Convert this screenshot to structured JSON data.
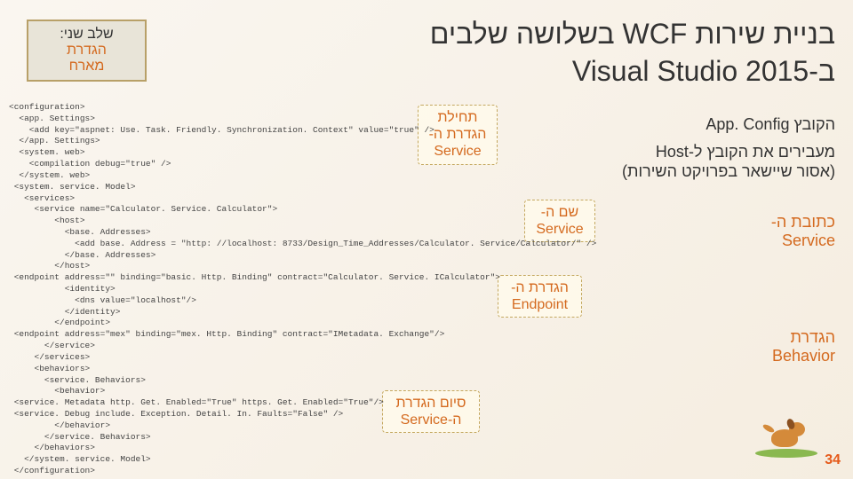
{
  "title": {
    "line1": "בניית שירות WCF בשלושה שלבים",
    "line2": "ב-Visual Studio 2015"
  },
  "stage": {
    "line1": "שלב שני:",
    "line2a": "הגדרת",
    "line2b": "מארח"
  },
  "side": {
    "appconfig": "הקובץ App. Config",
    "host_l1": "מעבירים את הקובץ ל-Host",
    "host_l2": "(אסור שיישאר בפרויקט השירות)",
    "addr_l1": "כתובת ה-",
    "addr_l2": "Service",
    "beh_l1": "הגדרת",
    "beh_l2": "Behavior"
  },
  "callouts": {
    "start_l1": "תחילת",
    "start_l2": "הגדרת ה-",
    "start_l3": "Service",
    "name_l1": "שם ה-",
    "name_l2": "Service",
    "endp_l1": "הגדרת ה-",
    "endp_l2": "Endpoint",
    "end_l1": "סיום הגדרת",
    "end_l2": "ה-Service"
  },
  "code_text": "<configuration>\n  <app. Settings>\n    <add key=\"aspnet: Use. Task. Friendly. Synchronization. Context\" value=\"true\" />\n  </app. Settings>\n  <system. web>\n    <compilation debug=\"true\" />\n  </system. web>\n <system. service. Model>\n   <services>\n     <service name=\"Calculator. Service. Calculator\">\n         <host>\n           <base. Addresses>\n             <add base. Address = \"http: //localhost: 8733/Design_Time_Addresses/Calculator. Service/Calculator/\" />\n           </base. Addresses>\n         </host>\n <endpoint address=\"\" binding=\"basic. Http. Binding\" contract=\"Calculator. Service. ICalculator\">\n           <identity>\n             <dns value=\"localhost\"/>\n           </identity>\n         </endpoint>\n <endpoint address=\"mex\" binding=\"mex. Http. Binding\" contract=\"IMetadata. Exchange\"/>\n       </service>\n     </services>\n     <behaviors>\n       <service. Behaviors>\n         <behavior>\n <service. Metadata http. Get. Enabled=\"True\" https. Get. Enabled=\"True\"/>\n <service. Debug include. Exception. Detail. In. Faults=\"False\" />\n         </behavior>\n       </service. Behaviors>\n     </behaviors>\n   </system. service. Model>\n </configuration>",
  "page_number": "34",
  "colors": {
    "accent": "#d4691e",
    "box_border": "#b8a068",
    "box_bg": "#e8e4d8",
    "callout_border": "#c4a860"
  }
}
